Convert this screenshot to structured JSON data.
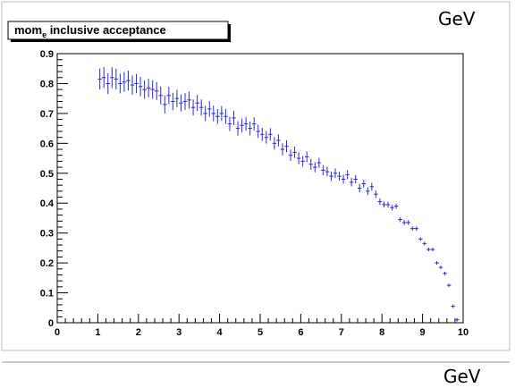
{
  "chart_data": {
    "type": "scatter",
    "title_main": "mom",
    "title_sub": "e",
    "title_rest": " inclusive acceptance",
    "unit_top": "GeV",
    "unit_bottom": "GeV",
    "xlim": [
      0,
      10
    ],
    "ylim": [
      0,
      0.9
    ],
    "xticks": [
      "0",
      "1",
      "2",
      "3",
      "4",
      "5",
      "6",
      "7",
      "8",
      "9",
      "10"
    ],
    "yticks": [
      "0",
      "0.1",
      "0.2",
      "0.3",
      "0.4",
      "0.5",
      "0.6",
      "0.7",
      "0.8",
      "0.9"
    ],
    "series_color": "#2a2ad6",
    "x": [
      1.05,
      1.15,
      1.25,
      1.35,
      1.45,
      1.55,
      1.65,
      1.75,
      1.85,
      1.95,
      2.05,
      2.15,
      2.25,
      2.35,
      2.45,
      2.55,
      2.65,
      2.75,
      2.85,
      2.95,
      3.05,
      3.15,
      3.25,
      3.35,
      3.45,
      3.55,
      3.65,
      3.75,
      3.85,
      3.95,
      4.05,
      4.15,
      4.25,
      4.35,
      4.45,
      4.55,
      4.65,
      4.75,
      4.85,
      4.95,
      5.05,
      5.15,
      5.25,
      5.35,
      5.45,
      5.55,
      5.65,
      5.75,
      5.85,
      5.95,
      6.05,
      6.15,
      6.25,
      6.35,
      6.45,
      6.55,
      6.65,
      6.75,
      6.85,
      6.95,
      7.05,
      7.15,
      7.25,
      7.35,
      7.45,
      7.55,
      7.65,
      7.75,
      7.85,
      7.95,
      8.05,
      8.15,
      8.25,
      8.35,
      8.45,
      8.55,
      8.65,
      8.75,
      8.85,
      8.95,
      9.05,
      9.15,
      9.25,
      9.35,
      9.45,
      9.55,
      9.65,
      9.75,
      9.85
    ],
    "y": [
      0.815,
      0.82,
      0.8,
      0.82,
      0.815,
      0.8,
      0.805,
      0.81,
      0.795,
      0.8,
      0.79,
      0.78,
      0.785,
      0.78,
      0.775,
      0.76,
      0.73,
      0.76,
      0.74,
      0.75,
      0.735,
      0.74,
      0.745,
      0.72,
      0.735,
      0.72,
      0.7,
      0.715,
      0.7,
      0.69,
      0.7,
      0.69,
      0.665,
      0.685,
      0.65,
      0.66,
      0.665,
      0.65,
      0.665,
      0.64,
      0.63,
      0.62,
      0.63,
      0.6,
      0.61,
      0.58,
      0.59,
      0.56,
      0.57,
      0.55,
      0.54,
      0.555,
      0.53,
      0.52,
      0.535,
      0.51,
      0.505,
      0.49,
      0.5,
      0.49,
      0.48,
      0.495,
      0.47,
      0.48,
      0.45,
      0.465,
      0.44,
      0.455,
      0.43,
      0.405,
      0.395,
      0.395,
      0.385,
      0.39,
      0.345,
      0.335,
      0.335,
      0.315,
      0.315,
      0.28,
      0.265,
      0.245,
      0.245,
      0.2,
      0.185,
      0.165,
      0.125,
      0.055,
      0.01
    ],
    "yerr": [
      0.035,
      0.035,
      0.035,
      0.035,
      0.035,
      0.033,
      0.033,
      0.033,
      0.032,
      0.032,
      0.032,
      0.031,
      0.031,
      0.031,
      0.03,
      0.03,
      0.03,
      0.029,
      0.029,
      0.029,
      0.028,
      0.028,
      0.028,
      0.027,
      0.027,
      0.027,
      0.026,
      0.026,
      0.026,
      0.025,
      0.025,
      0.025,
      0.024,
      0.024,
      0.024,
      0.023,
      0.023,
      0.023,
      0.022,
      0.022,
      0.022,
      0.021,
      0.021,
      0.021,
      0.02,
      0.02,
      0.02,
      0.019,
      0.019,
      0.019,
      0.018,
      0.018,
      0.018,
      0.017,
      0.017,
      0.017,
      0.016,
      0.016,
      0.016,
      0.015,
      0.015,
      0.015,
      0.014,
      0.014,
      0.014,
      0.013,
      0.013,
      0.013,
      0.012,
      0.011,
      0.01,
      0.01,
      0.009,
      0.009,
      0.008,
      0.008,
      0.008,
      0.007,
      0.007,
      0.006,
      0.006,
      0.006,
      0.005,
      0.005,
      0.004,
      0.004,
      0.003,
      0.002,
      0.002
    ],
    "grid": false,
    "legend": "none"
  }
}
